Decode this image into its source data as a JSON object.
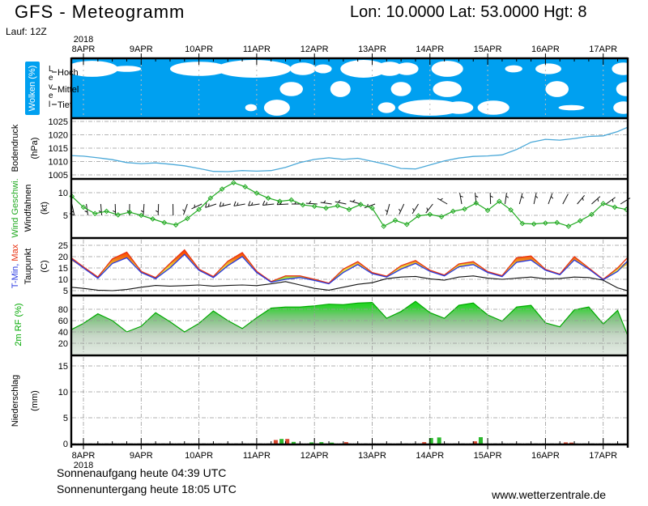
{
  "header": {
    "title": "GFS - Meteogramm",
    "coords": "Lon: 10.0000 Lat: 53.0000 Hgt: 8",
    "run": "Lauf: 12Z"
  },
  "footer": {
    "sunrise": "Sonnenaufgang heute 04:39 UTC",
    "sunset": "Sonnenuntergang heute 18:05 UTC",
    "website": "www.wetterzentrale.de"
  },
  "axis": {
    "year": "2018",
    "days": [
      "8APR",
      "9APR",
      "10APR",
      "11APR",
      "12APR",
      "13APR",
      "14APR",
      "15APR",
      "16APR",
      "17APR"
    ]
  },
  "panels": {
    "clouds": {
      "label": "Wolken (%)",
      "level_axis": "Level",
      "levels": [
        "Hoch",
        "Mittel",
        "Tief"
      ]
    },
    "pressure": {
      "label": "Bodendruck",
      "unit": "(hPa)"
    },
    "wind": {
      "label_speed": "Wind Geschwi.",
      "label_barbs": "Windfahnen",
      "unit": "(kt)"
    },
    "temp": {
      "label_min": "T-Min,",
      "label_max": "Max",
      "label_dew": "Taupunkt",
      "unit": "(C)"
    },
    "rh": {
      "label": "2m RF (%)"
    },
    "precip": {
      "label": "Niederschlag",
      "unit": "(mm)"
    }
  },
  "colors": {
    "cloud_bg": "#00A0F0",
    "cloud_white": "#ffffff",
    "pressure_line": "#4aa8d8",
    "wind_green": "#22aa22",
    "barb_black": "#111111",
    "temp_min_blue": "#2838e0",
    "temp_max_red": "#e83010",
    "dewpoint": "#111111",
    "rh_green": "#00a800",
    "precip_green": "#2db82d",
    "precip_red": "#d84830",
    "grid": "#999999",
    "axis_black": "#000000"
  },
  "chart_data": [
    {
      "id": "clouds",
      "type": "area",
      "title": "Wolken (%)",
      "rows": [
        "Hoch",
        "Mittel",
        "Tief"
      ],
      "note": "white cloud blobs on blue background; entries are [day,row,width_days,size]",
      "blobs": [
        [
          0.15,
          0,
          0.9,
          0.9
        ],
        [
          0.75,
          0,
          0.5,
          0.35
        ],
        [
          2.0,
          0,
          1.0,
          0.8
        ],
        [
          2.95,
          0,
          1.3,
          1.0
        ],
        [
          3.8,
          0,
          0.45,
          0.7
        ],
        [
          4.15,
          0,
          0.3,
          0.5
        ],
        [
          4.85,
          0,
          0.8,
          1.0
        ],
        [
          5.3,
          0,
          0.45,
          0.8
        ],
        [
          5.6,
          0,
          0.4,
          0.7
        ],
        [
          6.3,
          0,
          0.55,
          0.9
        ],
        [
          7.45,
          0,
          0.3,
          0.4
        ],
        [
          8.05,
          0,
          0.45,
          0.6
        ],
        [
          9.35,
          0,
          0.4,
          0.7
        ],
        [
          3.6,
          1,
          0.4,
          0.8
        ],
        [
          4.45,
          1,
          0.35,
          0.9
        ],
        [
          5.5,
          1,
          0.35,
          0.8
        ],
        [
          6.3,
          1,
          0.5,
          0.9
        ],
        [
          8.2,
          1,
          0.4,
          0.9
        ],
        [
          9.4,
          1,
          0.35,
          0.8
        ],
        [
          2.9,
          2,
          0.2,
          0.4
        ],
        [
          3.35,
          2,
          0.45,
          0.9
        ],
        [
          5.25,
          2,
          0.3,
          0.6
        ],
        [
          6.0,
          2,
          1.1,
          0.9
        ],
        [
          6.5,
          2,
          0.5,
          0.7
        ],
        [
          7.1,
          2,
          0.55,
          0.8
        ],
        [
          8.45,
          2,
          0.45,
          0.3
        ],
        [
          9.35,
          2,
          0.35,
          0.7
        ]
      ]
    },
    {
      "id": "pressure",
      "type": "line",
      "ylabel": "Bodendruck (hPa)",
      "yticks": [
        1005,
        1010,
        1015,
        1020,
        1025
      ],
      "ylim": [
        1004,
        1026
      ],
      "x_start": -0.25,
      "x_step": 0.25,
      "values": [
        1012.2,
        1012.0,
        1011.4,
        1010.7,
        1009.6,
        1009.2,
        1009.5,
        1009.0,
        1008.4,
        1007.4,
        1006.3,
        1006.2,
        1006.6,
        1006.4,
        1006.6,
        1007.8,
        1009.6,
        1010.8,
        1011.4,
        1010.8,
        1011.2,
        1010.1,
        1008.9,
        1007.4,
        1007.2,
        1008.7,
        1010.2,
        1011.3,
        1011.9,
        1012.1,
        1012.5,
        1014.5,
        1017.2,
        1018.3,
        1018.0,
        1018.6,
        1019.4,
        1019.6,
        1021.2,
        1022.8
      ]
    },
    {
      "id": "wind",
      "type": "line",
      "ylabel": "Wind Geschwi. Windfahnen (kt)",
      "yticks": [
        5,
        10
      ],
      "ylim": [
        0,
        13
      ],
      "x_start": -0.2,
      "x_step": 0.2,
      "values": [
        9.2,
        6.8,
        5.4,
        5.9,
        5.1,
        5.7,
        5.0,
        4.2,
        3.4,
        2.9,
        4.3,
        6.3,
        8.8,
        10.8,
        12.2,
        11.3,
        9.9,
        8.8,
        8.1,
        8.4,
        7.3,
        7.0,
        6.6,
        7.1,
        6.3,
        7.4,
        6.6,
        2.6,
        3.9,
        3.0,
        4.9,
        5.2,
        4.7,
        5.9,
        6.4,
        7.7,
        6.1,
        8.1,
        6.2,
        3.2,
        3.1,
        3.3,
        3.4,
        2.6,
        3.8,
        5.2,
        7.6,
        6.8,
        6.3
      ],
      "barb_start": -0.2,
      "barb_step": 0.25,
      "barb_dirs": [
        168,
        172,
        175,
        178,
        181,
        184,
        182,
        179,
        200,
        245,
        252,
        257,
        260,
        262,
        264,
        267,
        270,
        274,
        278,
        282,
        286,
        250,
        195,
        205,
        212,
        218,
        300,
        350,
        355,
        358,
        8,
        15,
        12,
        20,
        28,
        40,
        48,
        54,
        58
      ]
    },
    {
      "id": "temperature",
      "type": "band+line",
      "ylabel": "T-Min, Max / Taupunkt (C)",
      "yticks": [
        5,
        10,
        15,
        20,
        25
      ],
      "ylim": [
        3,
        27
      ],
      "x_start": -0.25,
      "x_step": 0.25,
      "tmax": [
        19.5,
        15.5,
        11,
        19,
        22,
        13.5,
        10.8,
        17,
        23,
        14.5,
        11.2,
        18,
        21.8,
        13.5,
        9,
        11.5,
        11.5,
        10,
        8.3,
        14.5,
        17.8,
        13,
        11.4,
        16,
        18.3,
        14,
        11.9,
        16.8,
        17.8,
        13.4,
        11.6,
        19.5,
        20.3,
        14.4,
        12.3,
        20,
        15,
        10,
        15,
        19.5
      ],
      "tmin": [
        19,
        15,
        10.5,
        17,
        19.5,
        13,
        10.3,
        15,
        21,
        14,
        10.8,
        16,
        20,
        13,
        8.7,
        10,
        10.8,
        9.5,
        8.0,
        13,
        16.5,
        12.5,
        11.0,
        14.5,
        17.0,
        13.5,
        11.5,
        15.5,
        16.5,
        13,
        11.2,
        17.5,
        18.5,
        14,
        12.0,
        18.5,
        14.5,
        9.8,
        13.5,
        18
      ],
      "dewpoint": [
        6.5,
        6,
        5.2,
        5,
        5.5,
        6.5,
        7.3,
        7,
        7.2,
        7.5,
        7,
        7.3,
        7.5,
        7.2,
        8,
        9,
        7.5,
        6,
        5.2,
        6.5,
        7.8,
        8.5,
        10.3,
        11,
        11.3,
        10.2,
        9.6,
        11,
        11.5,
        10.5,
        10,
        10.5,
        11,
        10.2,
        10.4,
        11,
        10.8,
        9.6,
        6.2,
        5
      ]
    },
    {
      "id": "humidity",
      "type": "area",
      "ylabel": "2m RF (%)",
      "yticks": [
        20,
        40,
        60,
        80
      ],
      "ylim": [
        0,
        100
      ],
      "x_start": -0.25,
      "x_step": 0.25,
      "values": [
        44,
        55,
        72,
        60,
        40,
        50,
        74,
        58,
        40,
        55,
        77,
        60,
        46,
        65,
        82,
        84,
        84,
        86,
        89,
        88,
        91,
        92,
        64,
        76,
        94,
        74,
        64,
        87,
        91,
        70,
        59,
        84,
        87,
        56,
        49,
        79,
        84,
        54,
        78,
        35
      ]
    },
    {
      "id": "precipitation",
      "type": "bar",
      "ylabel": "Niederschlag (mm)",
      "yticks": [
        0,
        5,
        10,
        15
      ],
      "ylim": [
        0,
        17
      ],
      "note": "bars are [day, mm, color g=green r=red]",
      "bars": [
        [
          3.33,
          0.7,
          "r"
        ],
        [
          3.43,
          0.9,
          "g"
        ],
        [
          3.53,
          0.9,
          "r"
        ],
        [
          3.64,
          0.35,
          "g"
        ],
        [
          3.95,
          0.25,
          "g"
        ],
        [
          4.12,
          0.3,
          "g"
        ],
        [
          4.3,
          0.2,
          "g"
        ],
        [
          4.55,
          0.3,
          "r"
        ],
        [
          5.9,
          0.3,
          "r"
        ],
        [
          6.02,
          1.1,
          "g"
        ],
        [
          6.16,
          1.2,
          "g"
        ],
        [
          6.78,
          0.45,
          "r"
        ],
        [
          6.88,
          1.25,
          "g"
        ],
        [
          8.35,
          0.25,
          "r"
        ],
        [
          8.45,
          0.2,
          "r"
        ]
      ]
    }
  ]
}
